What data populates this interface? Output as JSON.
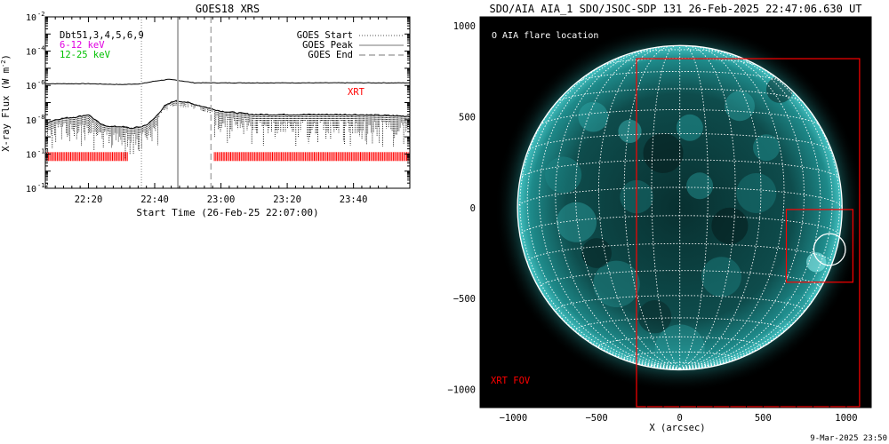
{
  "left_chart": {
    "title": "GOES18 XRS",
    "ylabel_main": "X-ray Flux (W m",
    "ylabel_sup": "-2",
    "ylabel_close": ")",
    "xlabel": "Start Time (26-Feb-25 22:07:00)",
    "legend_left": [
      {
        "text": "Dbt51,3,4,5,6,9",
        "color": "#000000"
      },
      {
        "text": "6-12 keV",
        "color": "#e000e0"
      },
      {
        "text": "12-25 keV",
        "color": "#00c000"
      }
    ],
    "legend_right": [
      {
        "text": "GOES Start",
        "style": "dotted"
      },
      {
        "text": "GOES Peak",
        "style": "solid"
      },
      {
        "text": "GOES End",
        "style": "dashed"
      }
    ],
    "xrt_label": "XRT",
    "xrt_color": "#ff0000"
  },
  "right_chart": {
    "title": "SDO/AIA AIA_1 SDO/JSOC-SDP 131 26-Feb-2025 22:47:06.630 UT",
    "legend": "O AIA flare location",
    "xrt_fov_label": "XRT FOV",
    "xlabel": "X (arcsec)",
    "footer": "9-Mar-2025 23:50",
    "fov_color": "#ff0000",
    "disk_color": "#00a8a8"
  },
  "chart_data": [
    {
      "type": "line",
      "title": "GOES18 XRS",
      "ylabel": "X-ray Flux (W m-2)",
      "xlabel": "Start Time (26-Feb-25 22:07:00)",
      "y_scale": "log",
      "ylim": [
        1e-12,
        0.01
      ],
      "y_ticks": [
        {
          "value": -12,
          "label": "10",
          "exp": "-12"
        },
        {
          "value": -10,
          "label": "10",
          "exp": "-10"
        },
        {
          "value": -8,
          "label": "10",
          "exp": "-8"
        },
        {
          "value": -6,
          "label": "10",
          "exp": "-6"
        },
        {
          "value": -4,
          "label": "10",
          "exp": "-4"
        },
        {
          "value": -2,
          "label": "10",
          "exp": "-2"
        }
      ],
      "xlim_minutes": [
        7,
        117
      ],
      "x_ticks": [
        {
          "value": 20,
          "label": "22:20"
        },
        {
          "value": 40,
          "label": "22:40"
        },
        {
          "value": 60,
          "label": "23:00"
        },
        {
          "value": 80,
          "label": "23:20"
        },
        {
          "value": 100,
          "label": "23:40"
        }
      ],
      "goes_start_min": 36,
      "goes_peak_min": 47,
      "goes_end_min": 57,
      "series": [
        {
          "name": "6-12 keV",
          "x": [
            7,
            20,
            30,
            36,
            40,
            44,
            47,
            52,
            57,
            65,
            80,
            100,
            117
          ],
          "log10_flux": [
            -5.9,
            -5.9,
            -5.95,
            -5.9,
            -5.75,
            -5.65,
            -5.7,
            -5.85,
            -5.85,
            -5.85,
            -5.85,
            -5.85,
            -5.85
          ]
        },
        {
          "name": "12-25 keV",
          "x": [
            7,
            10,
            13,
            16,
            20,
            24,
            27,
            30,
            33,
            36,
            38,
            40,
            43,
            46,
            49,
            52,
            55,
            57,
            60,
            65,
            70,
            80,
            90,
            100,
            110,
            117
          ],
          "log10_flux": [
            -8.2,
            -8.0,
            -7.9,
            -7.85,
            -7.7,
            -8.3,
            -8.4,
            -8.4,
            -8.5,
            -8.4,
            -8.25,
            -7.9,
            -7.2,
            -6.9,
            -6.95,
            -7.1,
            -7.25,
            -7.35,
            -7.5,
            -7.6,
            -7.7,
            -7.7,
            -7.7,
            -7.7,
            -7.75,
            -7.8
          ]
        }
      ],
      "xrt_coverage_min": [
        [
          7,
          32
        ],
        [
          58,
          117
        ]
      ],
      "xrt_level_log10": -10.15
    },
    {
      "type": "scatter",
      "title": "SDO/AIA AIA_1 SDO/JSOC-SDP 131 26-Feb-2025 22:47:06.630 UT",
      "xlabel": "X (arcsec)",
      "xlim": [
        -1200,
        1150
      ],
      "ylim": [
        -1100,
        1050
      ],
      "x_ticks": [
        -1000,
        -500,
        0,
        500,
        1000
      ],
      "y_ticks": [
        -1000,
        -500,
        0,
        500,
        1000
      ],
      "solar_radius_arcsec": 975,
      "flare_location": {
        "x": 900,
        "y": -230,
        "r": 95
      },
      "xrt_fov": {
        "x0": -260,
        "x1": 1080,
        "y0": -1095,
        "y1": 820
      },
      "subregion": {
        "x0": 640,
        "x1": 1040,
        "y0": -410,
        "y1": -10
      }
    }
  ]
}
